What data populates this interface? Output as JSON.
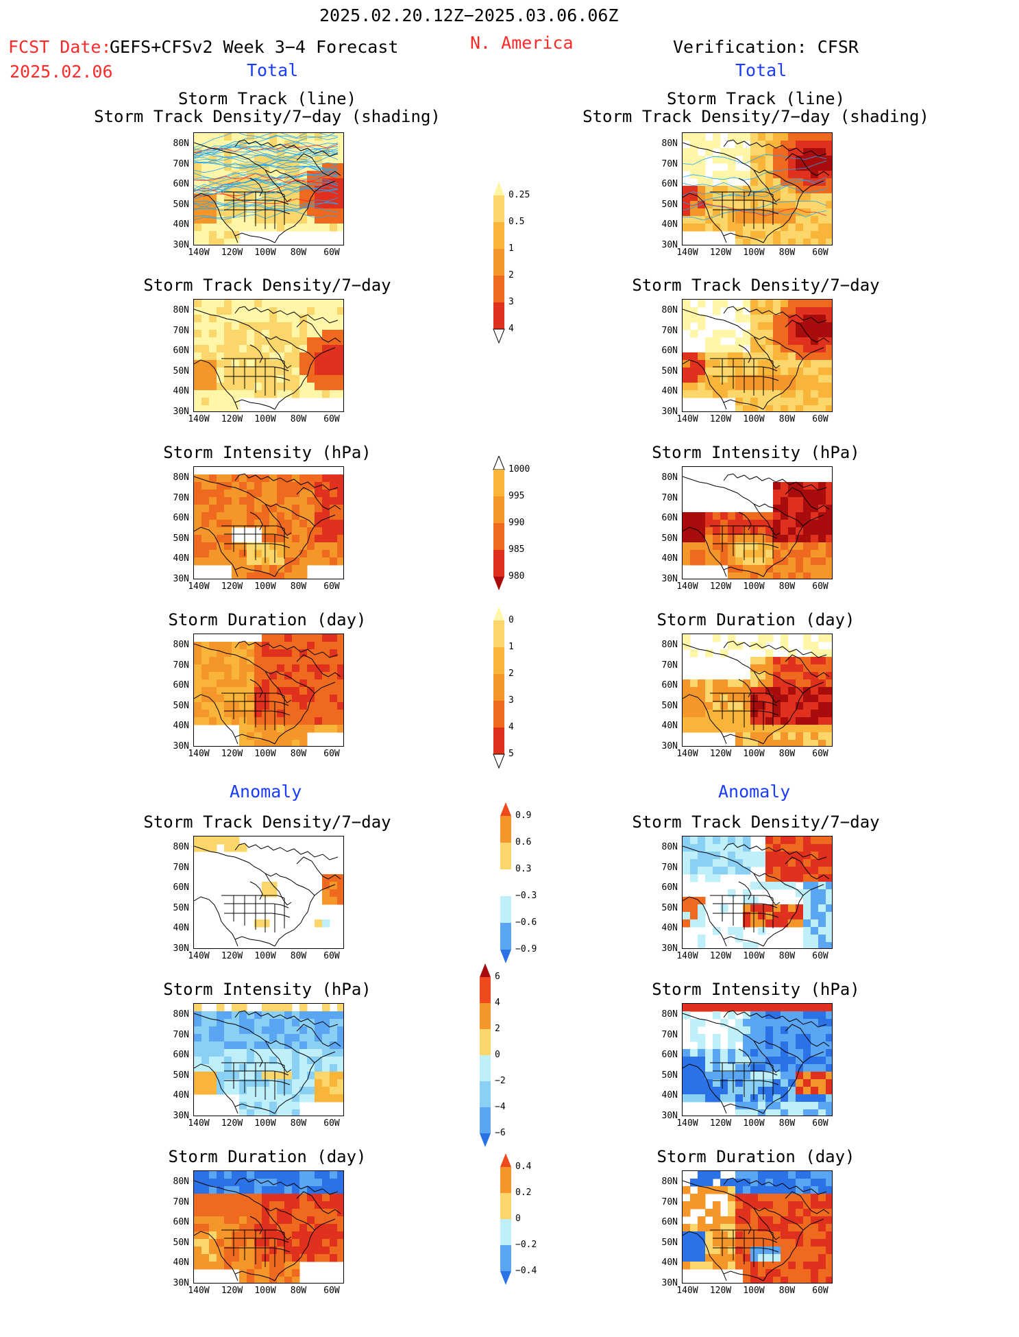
{
  "header": {
    "period": "2025.02.20.12Z−2025.03.06.06Z",
    "fcst_date_label": "FCST Date:",
    "fcst_date": "2025.02.06",
    "model": "GEFS+CFSv2 Week 3−4 Forecast",
    "region": "N. America",
    "verification": "Verification: CFSR",
    "total_label_left": "Total",
    "total_label_right": "Total",
    "anomaly_label_left": "Anomaly",
    "anomaly_label_right": "Anomaly"
  },
  "panel_titles": {
    "track_line": "Storm Track (line)",
    "track_density_shading": "Storm Track Density/7−day (shading)",
    "track_density": "Storm Track Density/7−day",
    "intensity": "Storm Intensity (hPa)",
    "duration": "Storm Duration (day)"
  },
  "map_axes": {
    "lat_labels": [
      "80N",
      "70N",
      "60N",
      "50N",
      "40N",
      "30N"
    ],
    "lon_labels": [
      "140W",
      "120W",
      "100W",
      "80W",
      "60W"
    ]
  },
  "colors": {
    "yellow_light": "#fff6a8",
    "yellow": "#fbd66a",
    "orange_light": "#f9b43a",
    "orange": "#f5962a",
    "orange_red": "#ef6a1e",
    "red": "#e0301e",
    "dark_red": "#a80c0c",
    "light_blue": "#bff0fa",
    "blue_light2": "#8ad0f5",
    "blue_mid": "#5aa6f2",
    "blue": "#2a72e6",
    "track_blue": "#22a6f0",
    "track_red": "#ff2020"
  },
  "chart_data": [
    {
      "type": "heatmap",
      "title": "Storm Track Density/7−day (shading)",
      "subtitle": "Storm Track (line)",
      "column": "GEFS+CFSv2 Week 3−4 Forecast",
      "section": "Total",
      "colorbar": "density",
      "pattern": "fcst_density"
    },
    {
      "type": "heatmap",
      "title": "Storm Track Density/7−day (shading)",
      "subtitle": "Storm Track (line)",
      "column": "Verification: CFSR",
      "section": "Total",
      "colorbar": "density",
      "pattern": "obs_density"
    },
    {
      "type": "heatmap",
      "title": "Storm Track Density/7−day",
      "section": "Total",
      "colorbar": {
        "levels": [
          0.25,
          0.5,
          1,
          2,
          3,
          4
        ],
        "tick_labels": [
          "0.25",
          "0.5",
          "1",
          "2",
          "3",
          "4"
        ],
        "colors": [
          "#fff6a8",
          "#fbd66a",
          "#f9b43a",
          "#f5962a",
          "#ef6a1e",
          "#e0301e",
          "#a80c0c"
        ]
      }
    },
    {
      "type": "heatmap",
      "title": "Storm Intensity (hPa)",
      "section": "Total",
      "colorbar": {
        "levels": [
          1000,
          995,
          990,
          985,
          980
        ],
        "tick_labels": [
          "1000",
          "995",
          "990",
          "985",
          "980"
        ],
        "colors": [
          "#fff6a8",
          "#f9b43a",
          "#f5962a",
          "#ef6a1e",
          "#e0301e",
          "#a80c0c"
        ]
      }
    },
    {
      "type": "heatmap",
      "title": "Storm Duration (day)",
      "section": "Total",
      "colorbar": {
        "levels": [
          0,
          1,
          2,
          3,
          4,
          5
        ],
        "tick_labels": [
          "0",
          "1",
          "2",
          "3",
          "4",
          "5"
        ],
        "colors": [
          "#fff6a8",
          "#fbd66a",
          "#f9b43a",
          "#f5962a",
          "#ef6a1e",
          "#e0301e",
          "#a80c0c"
        ]
      }
    },
    {
      "type": "heatmap",
      "title": "Storm Track Density/7−day",
      "section": "Anomaly",
      "colorbar": {
        "levels": [
          0.9,
          0.6,
          0.3,
          -0.3,
          -0.6,
          -0.9
        ],
        "tick_labels": [
          "0.9",
          "0.6",
          "0.3",
          "−0.3",
          "−0.6",
          "−0.9"
        ],
        "colors": [
          "#ef4a1e",
          "#f5962a",
          "#fbd66a",
          "#ffffff",
          "#bff0fa",
          "#5aa6f2",
          "#2a72e6"
        ]
      }
    },
    {
      "type": "heatmap",
      "title": "Storm Intensity (hPa)",
      "section": "Anomaly",
      "colorbar": {
        "levels": [
          6,
          4,
          2,
          0,
          -2,
          -4,
          -6
        ],
        "tick_labels": [
          "6",
          "4",
          "2",
          "0",
          "−2",
          "−4",
          "−6"
        ],
        "colors": [
          "#a80c0c",
          "#ef4a1e",
          "#f5962a",
          "#fbd66a",
          "#bff0fa",
          "#8ad0f5",
          "#5aa6f2",
          "#2a72e6"
        ]
      }
    },
    {
      "type": "heatmap",
      "title": "Storm Duration (day)",
      "section": "Anomaly",
      "colorbar": {
        "levels": [
          0.4,
          0.2,
          0,
          -0.2,
          -0.4
        ],
        "tick_labels": [
          "0.4",
          "0.2",
          "0",
          "−0.2",
          "−0.4"
        ],
        "colors": [
          "#ef4a1e",
          "#f5962a",
          "#fbd66a",
          "#bff0fa",
          "#5aa6f2",
          "#2a72e6"
        ]
      }
    }
  ]
}
